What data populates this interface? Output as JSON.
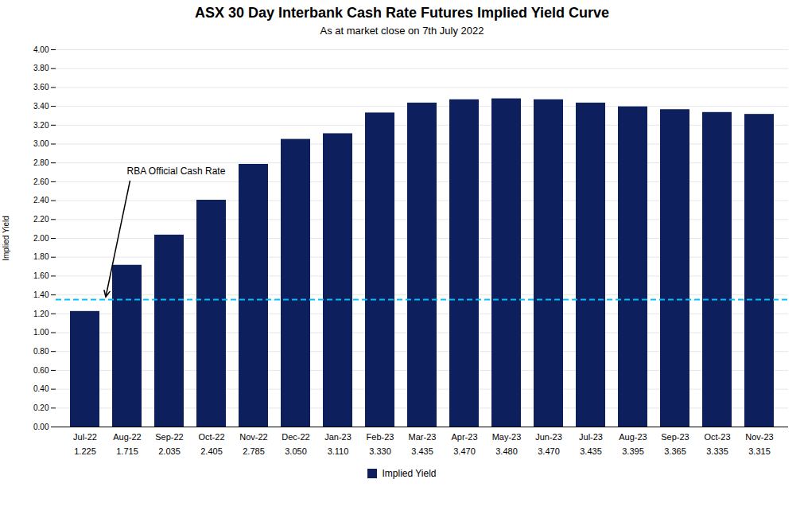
{
  "chart_data": {
    "type": "bar",
    "title": "ASX 30 Day Interbank Cash Rate Futures Implied Yield Curve",
    "subtitle": "As at market close on 7th July 2022",
    "ylabel": "Implied Yield",
    "categories": [
      "Jul-22",
      "Aug-22",
      "Sep-22",
      "Oct-22",
      "Nov-22",
      "Dec-22",
      "Jan-23",
      "Feb-23",
      "Mar-23",
      "Apr-23",
      "May-23",
      "Jun-23",
      "Jul-23",
      "Aug-23",
      "Sep-23",
      "Oct-23",
      "Nov-23"
    ],
    "series": [
      {
        "name": "Implied Yield",
        "color": "#0d1f5c",
        "values": [
          1.225,
          1.715,
          2.035,
          2.405,
          2.785,
          3.05,
          3.11,
          3.33,
          3.435,
          3.47,
          3.48,
          3.47,
          3.435,
          3.395,
          3.365,
          3.335,
          3.315
        ],
        "value_labels": [
          "1.225",
          "1.715",
          "2.035",
          "2.405",
          "2.785",
          "3.050",
          "3.110",
          "3.330",
          "3.435",
          "3.470",
          "3.480",
          "3.470",
          "3.435",
          "3.395",
          "3.365",
          "3.335",
          "3.315"
        ]
      }
    ],
    "ylim": [
      0.0,
      4.0
    ],
    "yticks": [
      {
        "value": 0.0,
        "label": "0.00"
      },
      {
        "value": 0.2,
        "label": "0.20"
      },
      {
        "value": 0.4,
        "label": "0.40"
      },
      {
        "value": 0.6,
        "label": "0.60"
      },
      {
        "value": 0.8,
        "label": "0.80"
      },
      {
        "value": 1.0,
        "label": "1.00"
      },
      {
        "value": 1.2,
        "label": "1.20"
      },
      {
        "value": 1.4,
        "label": "1.40"
      },
      {
        "value": 1.6,
        "label": "1.60"
      },
      {
        "value": 1.8,
        "label": "1.80"
      },
      {
        "value": 2.0,
        "label": "2.00"
      },
      {
        "value": 2.2,
        "label": "2.20"
      },
      {
        "value": 2.4,
        "label": "2.40"
      },
      {
        "value": 2.6,
        "label": "2.60"
      },
      {
        "value": 2.8,
        "label": "2.80"
      },
      {
        "value": 3.0,
        "label": "3.00"
      },
      {
        "value": 3.2,
        "label": "3.20"
      },
      {
        "value": 3.4,
        "label": "3.40"
      },
      {
        "value": 3.6,
        "label": "3.60"
      },
      {
        "value": 3.8,
        "label": "3.80"
      },
      {
        "value": 4.0,
        "label": "4.00"
      }
    ],
    "grid": true,
    "legend": "bottom",
    "data_labels": true,
    "reference_lines": [
      {
        "y": 1.35,
        "color": "#00bfff",
        "line_style": "dashed",
        "annotation": "RBA Official Cash Rate"
      }
    ]
  }
}
